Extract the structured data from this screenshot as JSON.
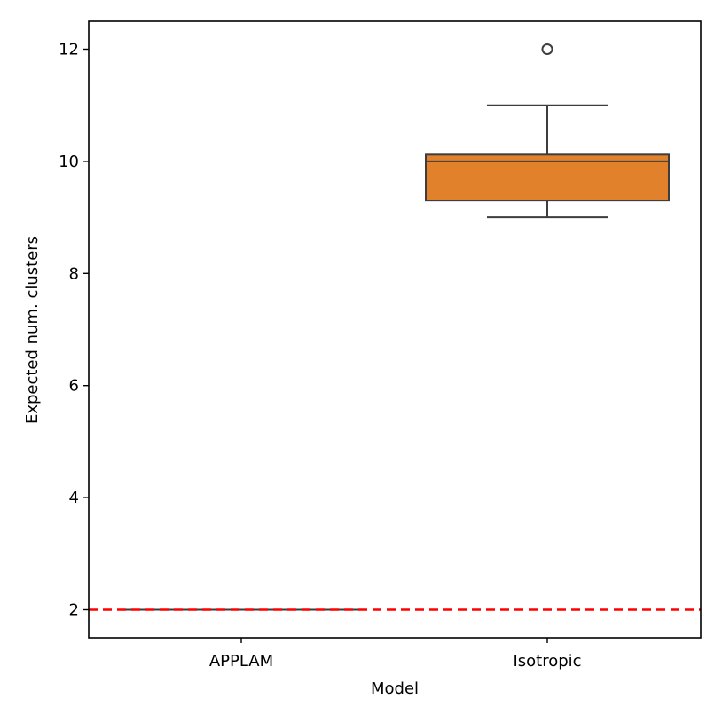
{
  "chart_data": {
    "type": "box",
    "xlabel": "Model",
    "ylabel": "Expected num. clusters",
    "ylim": [
      1.5,
      12.5
    ],
    "yticks": [
      2,
      4,
      6,
      8,
      10,
      12
    ],
    "ytick_labels": [
      "2",
      "4",
      "6",
      "8",
      "10",
      "12"
    ],
    "categories": [
      "APPLAM",
      "Isotropic"
    ],
    "boxes": [
      {
        "category": "APPLAM",
        "min": 2,
        "q1": 2,
        "median": 2,
        "q3": 2,
        "max": 2,
        "outliers": [],
        "color": "#1f77b4"
      },
      {
        "category": "Isotropic",
        "min": 9,
        "q1": 9.3,
        "median": 10,
        "q3": 10.12,
        "max": 11,
        "outliers": [
          12
        ],
        "color": "#e1812c"
      }
    ],
    "reference_line": {
      "y": 2,
      "color": "#ff0000",
      "style": "dashed"
    },
    "grid": false,
    "legend": "none"
  }
}
